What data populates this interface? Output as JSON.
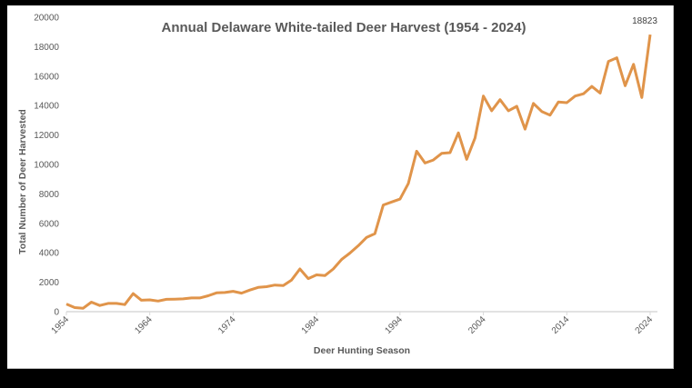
{
  "chart_data": {
    "type": "line",
    "title": "Annual Delaware White-tailed Deer Harvest (1954 - 2024)",
    "xlabel": "Deer Hunting Season",
    "ylabel": "Total Number of Deer Harvested",
    "ylim": [
      0,
      20000
    ],
    "y_ticks": [
      0,
      2000,
      4000,
      6000,
      8000,
      10000,
      12000,
      14000,
      16000,
      18000,
      20000
    ],
    "x_ticks": [
      1954,
      1964,
      1974,
      1984,
      1994,
      2004,
      2014,
      2024
    ],
    "grid": false,
    "legend": null,
    "line_color": "#E0944A",
    "annotations": [
      {
        "x": 2024,
        "text": "18823"
      }
    ],
    "x": [
      1954,
      1955,
      1956,
      1957,
      1958,
      1959,
      1960,
      1961,
      1962,
      1963,
      1964,
      1965,
      1966,
      1967,
      1968,
      1969,
      1970,
      1971,
      1972,
      1973,
      1974,
      1975,
      1976,
      1977,
      1978,
      1979,
      1980,
      1981,
      1982,
      1983,
      1984,
      1985,
      1986,
      1987,
      1988,
      1989,
      1990,
      1991,
      1992,
      1993,
      1994,
      1995,
      1996,
      1997,
      1998,
      1999,
      2000,
      2001,
      2002,
      2003,
      2004,
      2005,
      2006,
      2007,
      2008,
      2009,
      2010,
      2011,
      2012,
      2013,
      2014,
      2015,
      2016,
      2017,
      2018,
      2019,
      2020,
      2021,
      2022,
      2023,
      2024
    ],
    "series": [
      {
        "name": "Deer Harvested",
        "values": [
          520,
          280,
          230,
          650,
          420,
          560,
          560,
          480,
          1230,
          780,
          800,
          720,
          840,
          850,
          870,
          930,
          930,
          1080,
          1280,
          1300,
          1380,
          1260,
          1470,
          1650,
          1700,
          1810,
          1770,
          2150,
          2900,
          2250,
          2500,
          2450,
          2900,
          3550,
          3980,
          4480,
          5050,
          5300,
          7250,
          7450,
          7650,
          8700,
          10900,
          10100,
          10300,
          10750,
          10800,
          12150,
          10350,
          11800,
          14650,
          13650,
          14400,
          13650,
          13950,
          12400,
          14150,
          13600,
          13350,
          14250,
          14200,
          14650,
          14800,
          15300,
          14850,
          17000,
          17250,
          15350,
          16800,
          14550,
          18823
        ]
      }
    ]
  }
}
